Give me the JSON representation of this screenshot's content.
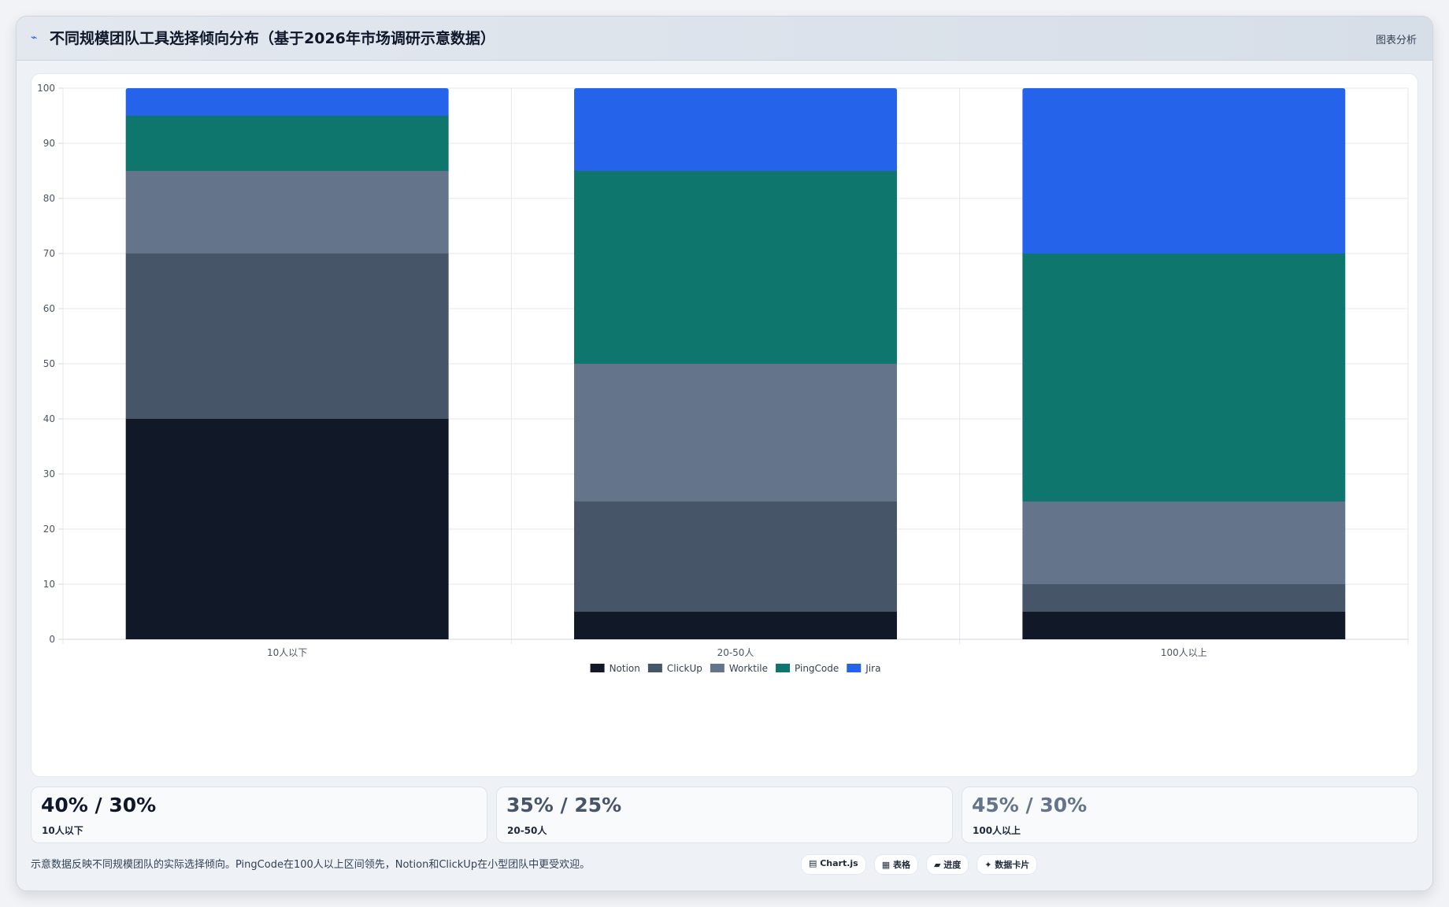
{
  "header": {
    "icon": "trend-icon",
    "title": "不同规模团队工具选择倾向分布（基于2026年市场调研示意数据）",
    "side_label": "图表分析"
  },
  "chart_data": {
    "type": "bar",
    "stacked": true,
    "categories": [
      "10人以下",
      "20-50人",
      "100人以上"
    ],
    "series": [
      {
        "name": "Notion",
        "color": "#111827",
        "values": [
          40,
          5,
          5
        ]
      },
      {
        "name": "ClickUp",
        "color": "#475569",
        "values": [
          30,
          20,
          5
        ]
      },
      {
        "name": "Worktile",
        "color": "#64748b",
        "values": [
          15,
          25,
          15
        ]
      },
      {
        "name": "PingCode",
        "color": "#0f766e",
        "values": [
          10,
          35,
          45
        ]
      },
      {
        "name": "Jira",
        "color": "#2563eb",
        "values": [
          5,
          15,
          30
        ]
      }
    ],
    "ylim": [
      0,
      100
    ],
    "yticks": [
      0,
      10,
      20,
      30,
      40,
      50,
      60,
      70,
      80,
      90,
      100
    ],
    "grid": true,
    "legend_position": "bottom"
  },
  "stats": [
    {
      "value": "40% / 30%",
      "label": "10人以下",
      "color": "#0f172a"
    },
    {
      "value": "35% / 25%",
      "label": "20-50人",
      "color": "#475569"
    },
    {
      "value": "45% / 30%",
      "label": "100人以上",
      "color": "#64748b"
    }
  ],
  "footer": {
    "note": "示意数据反映不同规模团队的实际选择倾向。PingCode在100人以上区间领先，Notion和ClickUp在小型团队中更受欢迎。",
    "pills": [
      "▤ Chart.js",
      "▦ 表格",
      "▰ 进度",
      "✦ 数据卡片"
    ]
  }
}
